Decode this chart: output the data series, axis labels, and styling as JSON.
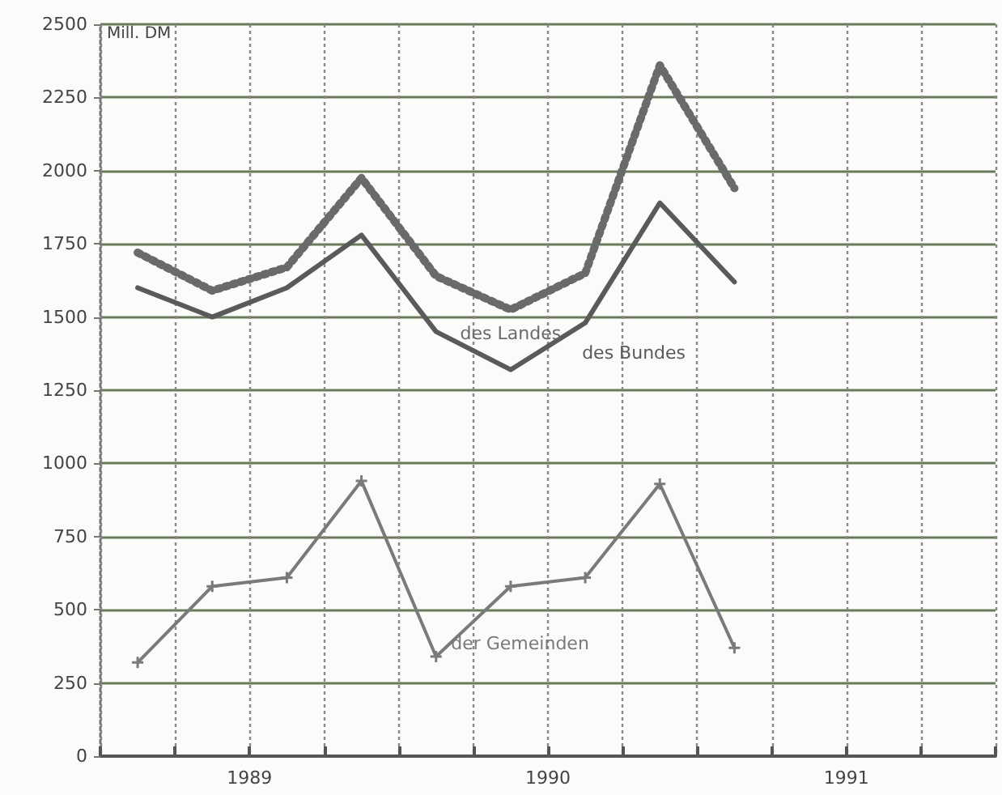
{
  "chart_data": {
    "type": "line",
    "ylabel": "Mill. DM",
    "x": [
      1989.125,
      1989.375,
      1989.625,
      1989.875,
      1990.125,
      1990.375,
      1990.625,
      1990.875,
      1991.125
    ],
    "series": [
      {
        "name": "des Landes",
        "color": "#6a6a6a",
        "line_style": "dotted",
        "values": [
          1720,
          1590,
          1670,
          1975,
          1640,
          1525,
          1650,
          2360,
          1940
        ]
      },
      {
        "name": "des Bundes",
        "color": "#5a5a5a",
        "line_style": "solid",
        "values": [
          1600,
          1500,
          1600,
          1780,
          1450,
          1320,
          1480,
          1890,
          1620
        ]
      },
      {
        "name": "der Gemeinden",
        "color": "#7a7a7a",
        "line_style": "solid",
        "marker": "cross",
        "values": [
          320,
          580,
          610,
          940,
          340,
          580,
          610,
          930,
          370
        ]
      }
    ],
    "xlim": [
      1989,
      1992
    ],
    "xticks": [
      {
        "value": 1989,
        "label": null
      },
      {
        "value": 1989.25,
        "label": null
      },
      {
        "value": 1989.5,
        "label": "1989"
      },
      {
        "value": 1989.75,
        "label": null
      },
      {
        "value": 1990,
        "label": null
      },
      {
        "value": 1990.25,
        "label": null
      },
      {
        "value": 1990.5,
        "label": "1990"
      },
      {
        "value": 1990.75,
        "label": null
      },
      {
        "value": 1991,
        "label": null
      },
      {
        "value": 1991.25,
        "label": null
      },
      {
        "value": 1991.5,
        "label": "1991"
      },
      {
        "value": 1991.75,
        "label": null
      },
      {
        "value": 1992,
        "label": null
      }
    ],
    "ylim": [
      0,
      2500
    ],
    "yticks": [
      0,
      250,
      500,
      750,
      1000,
      1250,
      1500,
      1750,
      2000,
      2250,
      2500
    ],
    "grid": true,
    "legend": false,
    "marker": "none"
  }
}
